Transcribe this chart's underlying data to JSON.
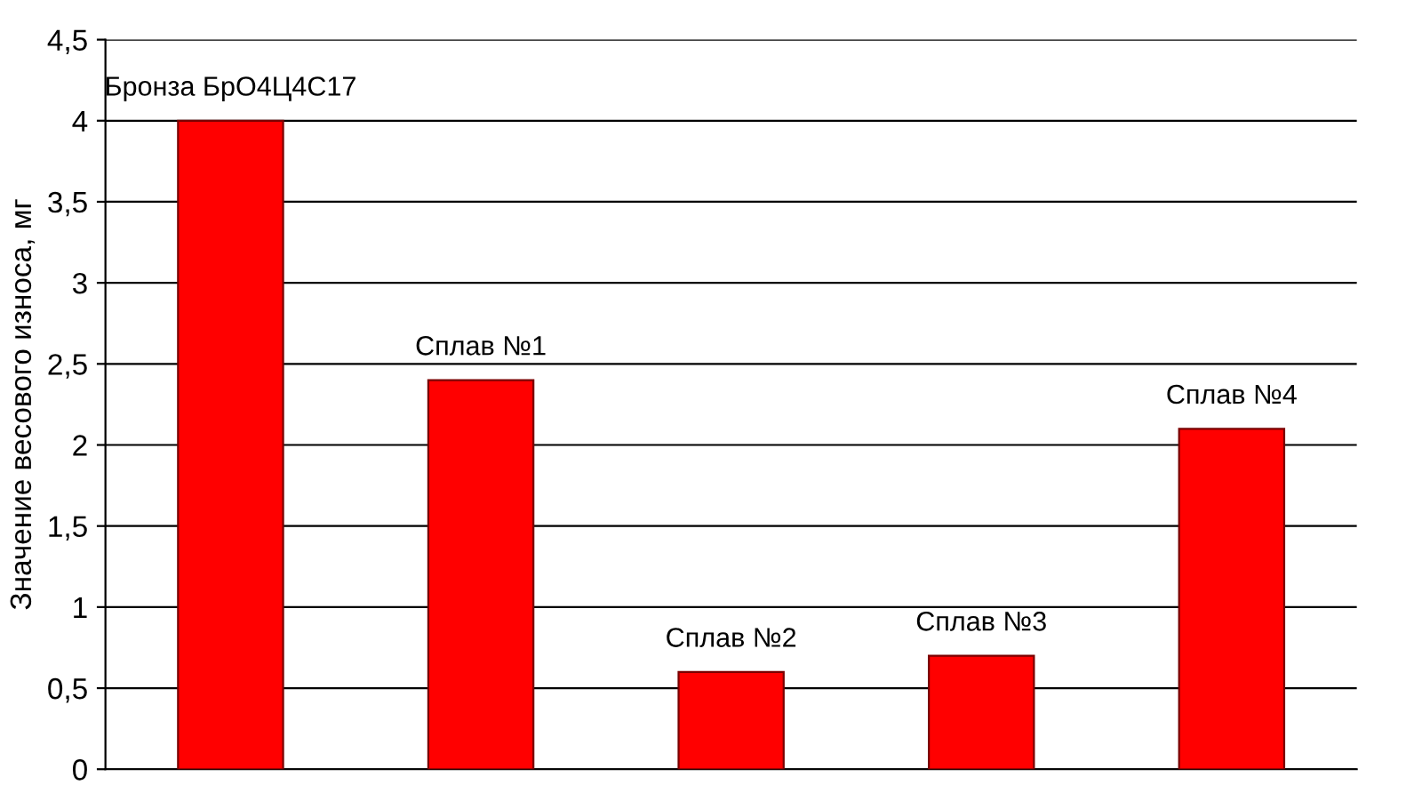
{
  "chart_data": {
    "type": "bar",
    "ylabel": "Значение весового износа, мг",
    "categories": [
      "Бронза БрО4Ц4С17",
      "Сплав №1",
      "Сплав №2",
      "Сплав №3",
      "Сплав №4"
    ],
    "values": [
      4,
      2.4,
      0.6,
      0.7,
      2.1
    ],
    "color": "#ff0000",
    "ylim": [
      0,
      4.5
    ],
    "yticks": [
      0,
      {
        "value": 0.5,
        "label": "0,5"
      },
      1,
      {
        "value": 1.5,
        "label": "1,5"
      },
      2,
      {
        "value": 2.5,
        "label": "2,5"
      },
      3,
      {
        "value": 3.5,
        "label": "3,5"
      },
      4,
      {
        "value": 4.5,
        "label": "4,5"
      }
    ],
    "grid": "y"
  }
}
